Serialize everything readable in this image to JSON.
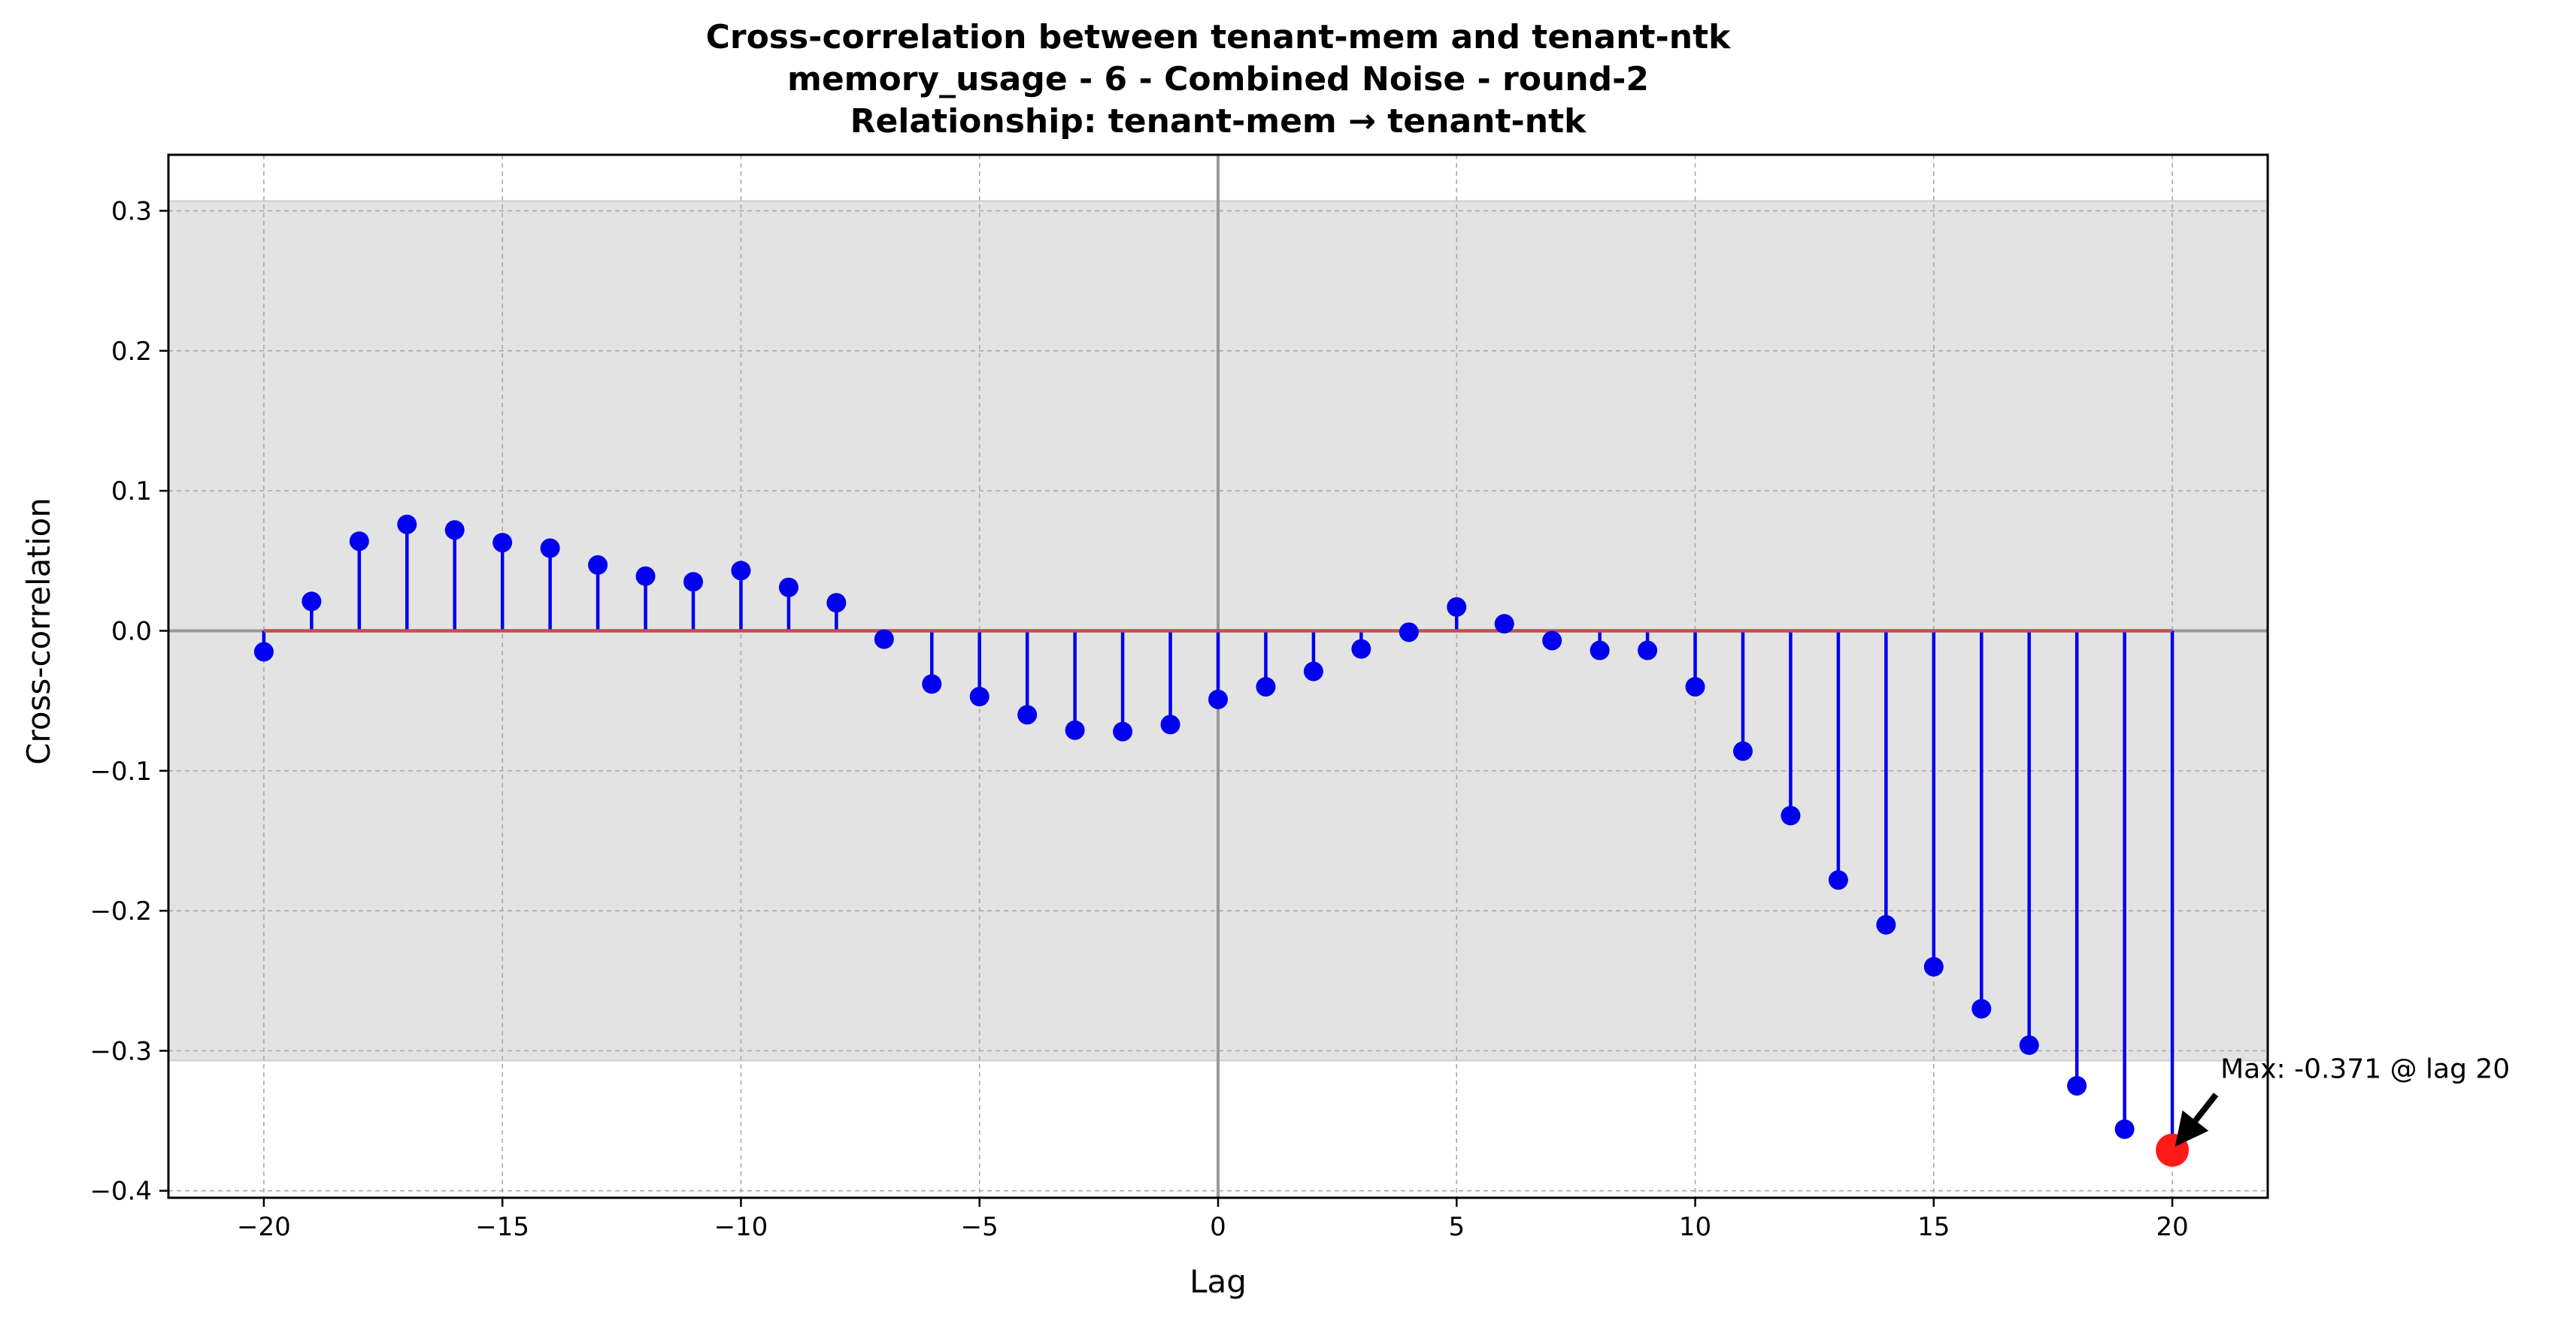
{
  "chart_data": {
    "type": "stem",
    "title_lines": [
      "Cross-correlation between tenant-mem and tenant-ntk",
      "memory_usage - 6 - Combined Noise - round-2",
      "Relationship: tenant-mem → tenant-ntk"
    ],
    "xlabel": "Lag",
    "ylabel": "Cross-correlation",
    "xlim": [
      -22,
      22
    ],
    "ylim": [
      -0.405,
      0.34
    ],
    "xticks": [
      -20,
      -15,
      -10,
      -5,
      0,
      5,
      10,
      15,
      20
    ],
    "xtick_labels": [
      "−20",
      "−15",
      "−10",
      "−5",
      "0",
      "5",
      "10",
      "15",
      "20"
    ],
    "yticks": [
      -0.4,
      -0.3,
      -0.2,
      -0.1,
      0.0,
      0.1,
      0.2,
      0.3
    ],
    "ytick_labels": [
      "−0.4",
      "−0.3",
      "−0.2",
      "−0.1",
      "0.0",
      "0.1",
      "0.2",
      "0.3"
    ],
    "grid": true,
    "confidence_band": [
      -0.307,
      0.307
    ],
    "lags": [
      -20,
      -19,
      -18,
      -17,
      -16,
      -15,
      -14,
      -13,
      -12,
      -11,
      -10,
      -9,
      -8,
      -7,
      -6,
      -5,
      -4,
      -3,
      -2,
      -1,
      0,
      1,
      2,
      3,
      4,
      5,
      6,
      7,
      8,
      9,
      10,
      11,
      12,
      13,
      14,
      15,
      16,
      17,
      18,
      19,
      20
    ],
    "values": [
      -0.015,
      0.021,
      0.064,
      0.076,
      0.072,
      0.063,
      0.059,
      0.047,
      0.039,
      0.035,
      0.043,
      0.031,
      0.02,
      -0.006,
      -0.038,
      -0.047,
      -0.06,
      -0.071,
      -0.072,
      -0.067,
      -0.049,
      -0.04,
      -0.029,
      -0.013,
      -0.001,
      0.017,
      0.005,
      -0.007,
      -0.014,
      -0.014,
      -0.04,
      -0.086,
      -0.132,
      -0.178,
      -0.21,
      -0.24,
      -0.27,
      -0.296,
      -0.325,
      -0.356,
      -0.371
    ],
    "max_point": {
      "lag": 20,
      "value": -0.371
    },
    "annotation": "Max: -0.371 @ lag 20",
    "colors": {
      "stem": "#0000ee",
      "marker": "#0000ee",
      "baseline": "#c0504d",
      "max_marker": "#ff1a1a",
      "band": "#e3e3e3",
      "zero_lines": "#999999",
      "grid": "#aaaaaa"
    }
  }
}
